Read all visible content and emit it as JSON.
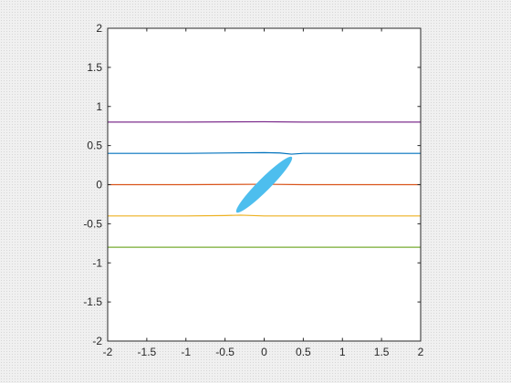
{
  "chart_data": {
    "type": "line",
    "title": "",
    "xlabel": "",
    "ylabel": "",
    "xlim": [
      -2,
      2
    ],
    "ylim": [
      -2,
      2
    ],
    "grid": false,
    "legend": "none",
    "x_ticks": [
      -2,
      -1.5,
      -1,
      -0.5,
      0,
      0.5,
      1,
      1.5,
      2
    ],
    "x_tick_labels": [
      "-2",
      "-1.5",
      "-1",
      "-0.5",
      "0",
      "0.5",
      "1",
      "1.5",
      "2"
    ],
    "y_ticks": [
      -2,
      -1.5,
      -1,
      -0.5,
      0,
      0.5,
      1,
      1.5,
      2
    ],
    "y_tick_labels": [
      "-2",
      "-1.5",
      "-1",
      "-0.5",
      "0",
      "0.5",
      "1",
      "1.5",
      "2"
    ],
    "series": [
      {
        "color": "#7e2f8e",
        "points": [
          [
            -2,
            0.8
          ],
          [
            -1,
            0.8
          ],
          [
            0,
            0.805
          ],
          [
            0.5,
            0.8
          ],
          [
            1,
            0.8
          ],
          [
            2,
            0.8
          ]
        ]
      },
      {
        "color": "#0072bd",
        "points": [
          [
            -2,
            0.4
          ],
          [
            -1,
            0.4
          ],
          [
            0,
            0.41
          ],
          [
            0.2,
            0.405
          ],
          [
            0.35,
            0.39
          ],
          [
            0.5,
            0.4
          ],
          [
            1,
            0.4
          ],
          [
            2,
            0.4
          ]
        ]
      },
      {
        "color": "#d95319",
        "points": [
          [
            -2,
            0.0
          ],
          [
            -1,
            0.0
          ],
          [
            0,
            0.005
          ],
          [
            0.5,
            0.0
          ],
          [
            1,
            0.0
          ],
          [
            2,
            0.0
          ]
        ]
      },
      {
        "color": "#edb120",
        "points": [
          [
            -2,
            -0.4
          ],
          [
            -1,
            -0.4
          ],
          [
            -0.5,
            -0.395
          ],
          [
            -0.3,
            -0.39
          ],
          [
            0,
            -0.4
          ],
          [
            1,
            -0.4
          ],
          [
            2,
            -0.4
          ]
        ]
      },
      {
        "color": "#77ac30",
        "points": [
          [
            -2,
            -0.8
          ],
          [
            -1,
            -0.8
          ],
          [
            0,
            -0.8
          ],
          [
            1,
            -0.8
          ],
          [
            2,
            -0.8
          ]
        ]
      }
    ],
    "ellipse": {
      "color": "#4dbeee",
      "center": [
        0,
        0
      ],
      "semi_major": 0.5,
      "semi_minor": 0.08,
      "angle_deg": 45
    }
  }
}
